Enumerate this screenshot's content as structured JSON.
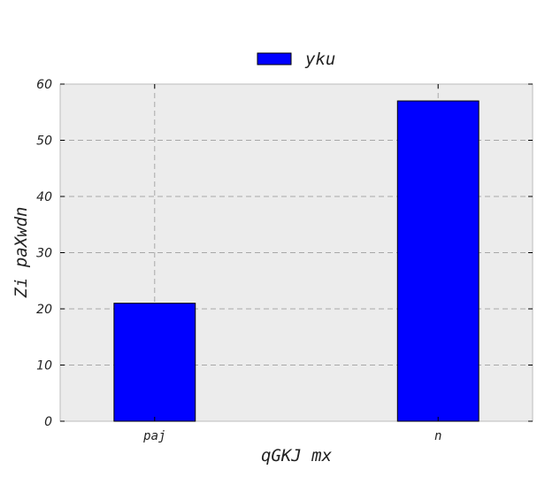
{
  "chart_data": {
    "type": "bar",
    "categories": [
      "paj",
      "n"
    ],
    "series": [
      {
        "name": "yku",
        "values": [
          21,
          57
        ],
        "color": "#0000ff"
      }
    ],
    "xlabel": "qGKJ mx",
    "ylabel": "Zi  paXwdn",
    "ylim": [
      0,
      60
    ],
    "yticks": [
      0,
      10,
      20,
      30,
      40,
      50,
      60
    ],
    "grid": true,
    "legend_position": "top-center",
    "plot_background": "#ececec"
  }
}
